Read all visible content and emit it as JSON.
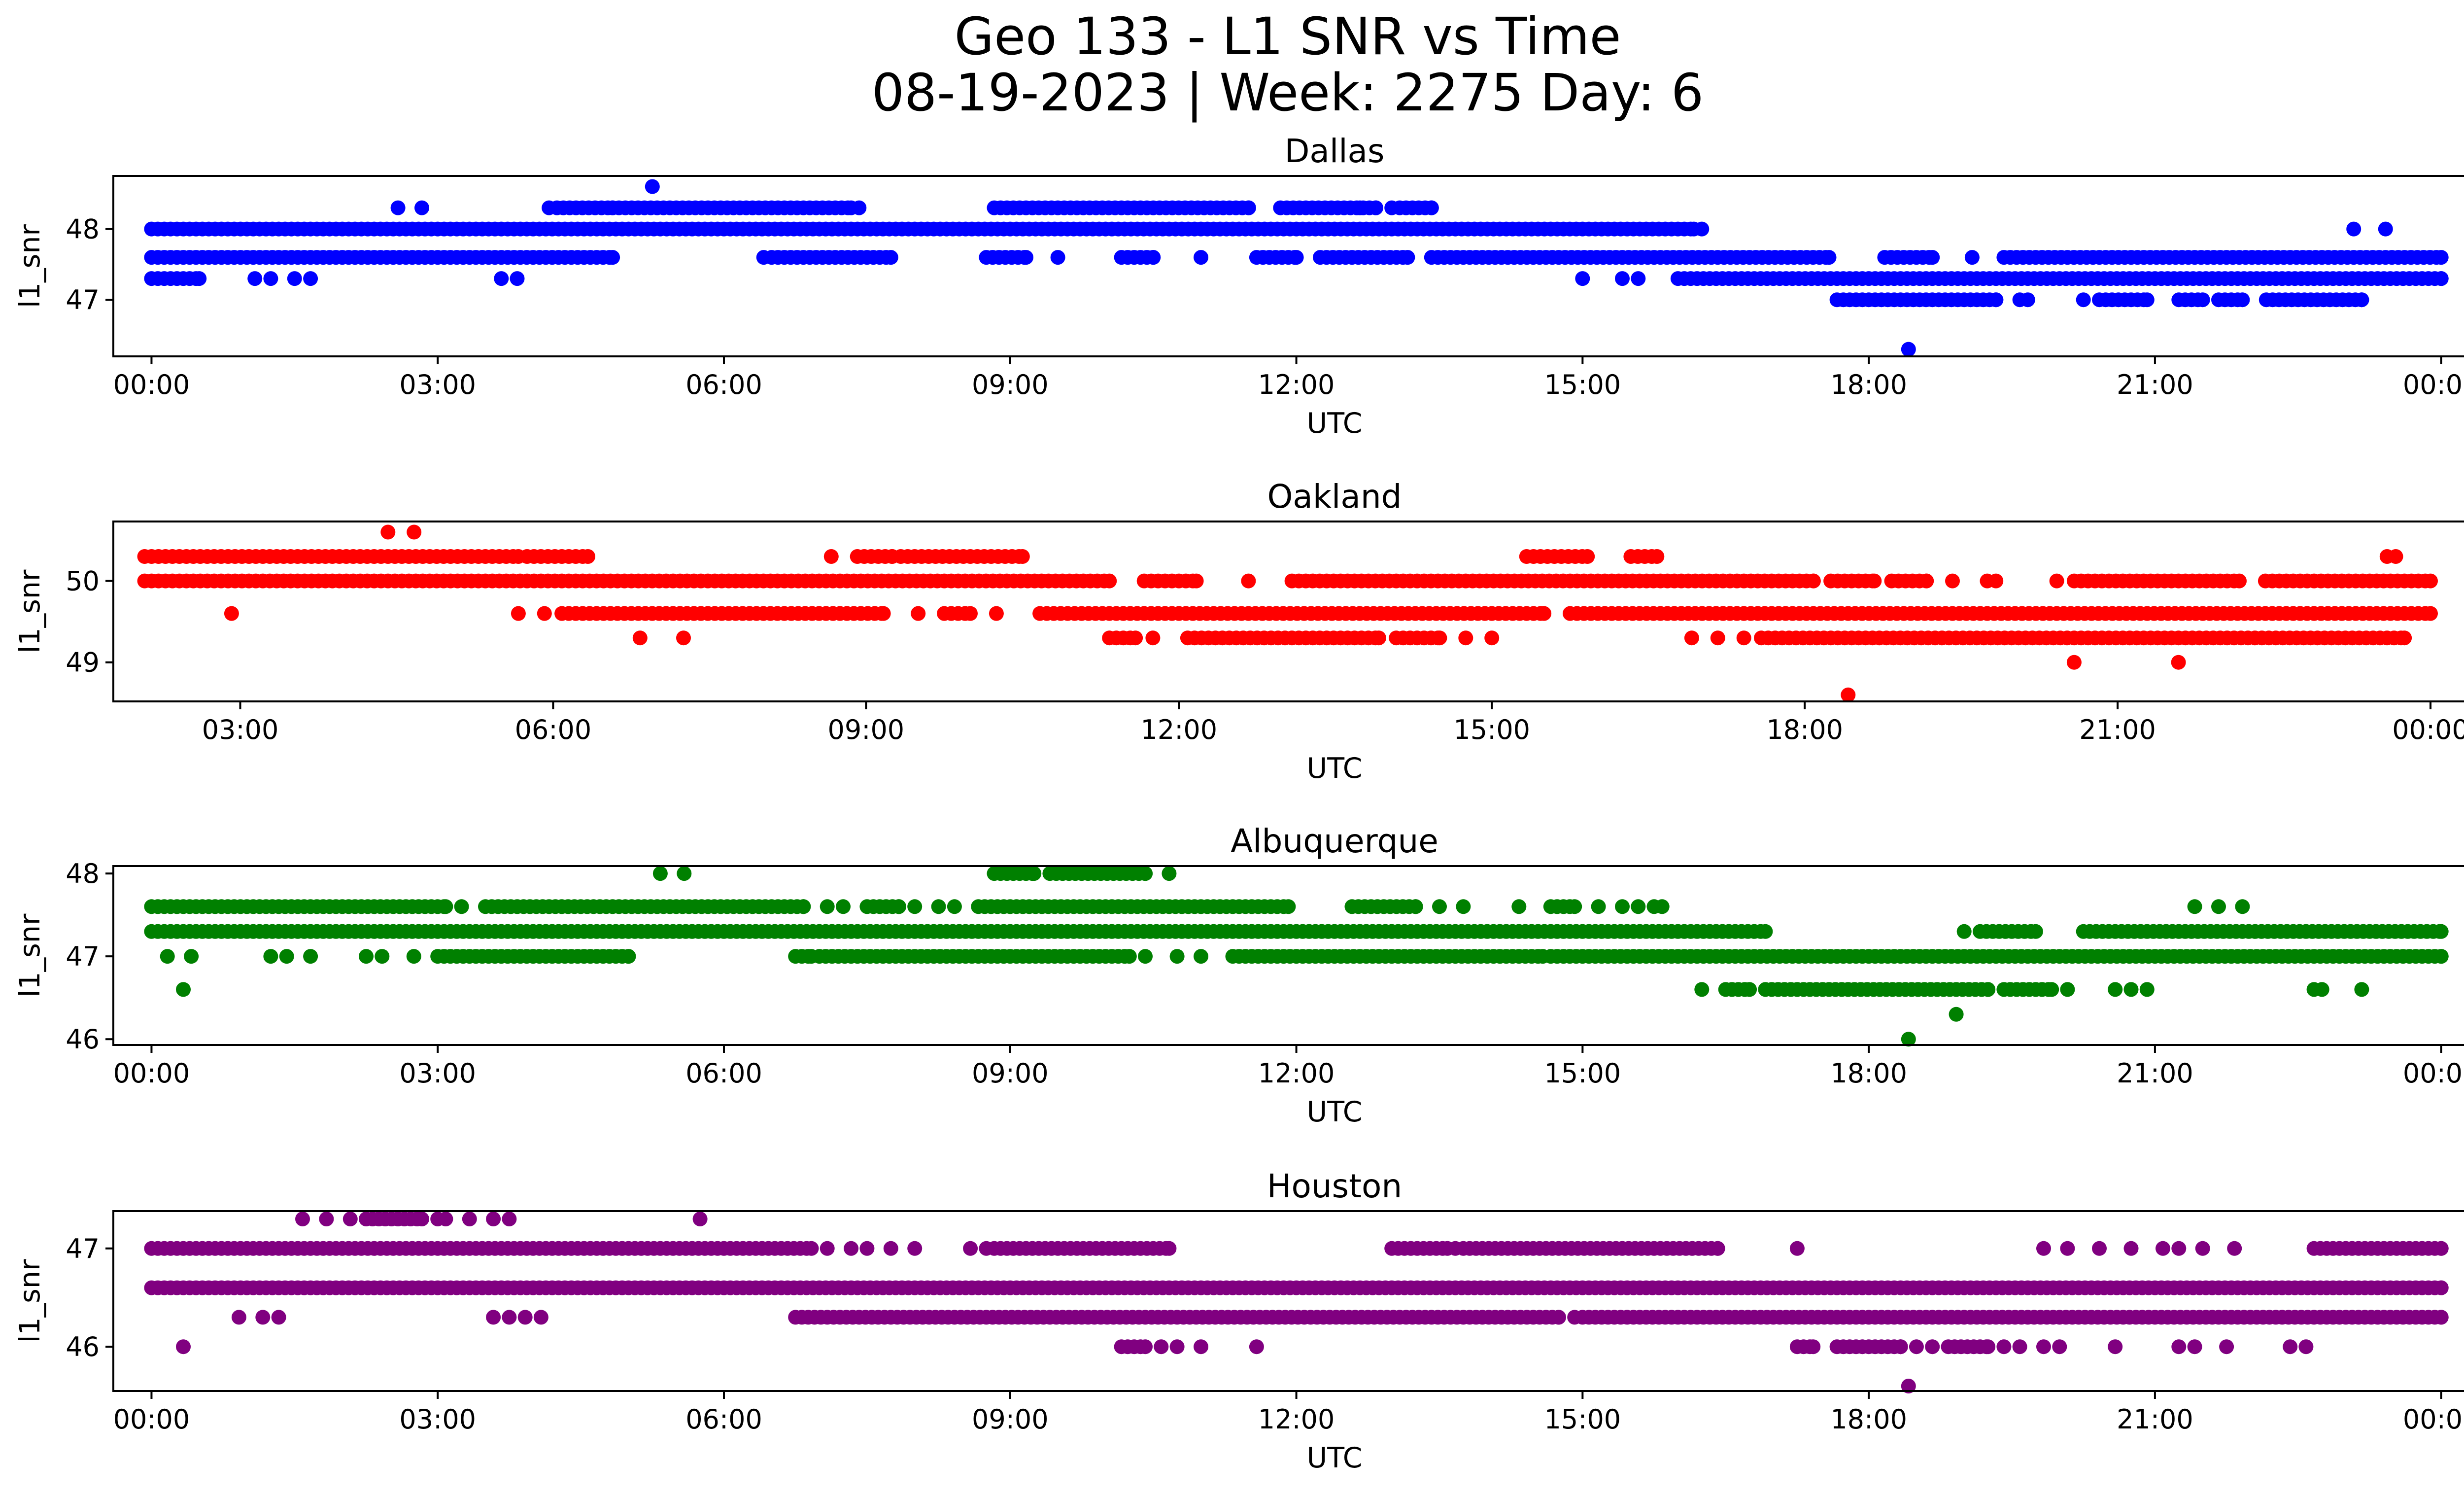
{
  "figure": {
    "title_line1": "Geo 133 - L1 SNR vs Time",
    "title_line2": "08-19-2023 | Week: 2275 Day: 6"
  },
  "chart_data": [
    {
      "type": "scatter",
      "title": "Dallas",
      "xlabel": "UTC",
      "ylabel": "l1_snr",
      "color": "#0000ff",
      "xlim": [
        "2023-08-19T23:36",
        "2023-08-21T01:12"
      ],
      "ylim": [
        46.2,
        48.75
      ],
      "x_ticks": [
        "00:00",
        "03:00",
        "06:00",
        "09:00",
        "12:00",
        "15:00",
        "18:00",
        "21:00",
        "00:00"
      ],
      "x_tick_values": [
        "2023-08-20T00:00",
        "2023-08-20T03:00",
        "2023-08-20T06:00",
        "2023-08-20T09:00",
        "2023-08-20T12:00",
        "2023-08-20T15:00",
        "2023-08-20T18:00",
        "2023-08-20T21:00",
        "2023-08-21T00:00"
      ],
      "y_ticks": [
        "47",
        "48"
      ],
      "y_tick_values": [
        47,
        48
      ],
      "series": [
        {
          "values": [
            {
              "y": 48.0,
              "ranges": [
                [
                  "00:00",
                  "16:10"
                ]
              ],
              "points": [
                "16:15",
                "23:05",
                "23:25"
              ]
            },
            {
              "y": 47.6,
              "ranges": [
                [
                  "00:00",
                  "04:50"
                ],
                [
                  "06:30",
                  "07:45"
                ],
                [
                  "08:45",
                  "09:10"
                ],
                [
                  "10:10",
                  "10:30"
                ],
                [
                  "11:35",
                  "12:00"
                ],
                [
                  "12:15",
                  "13:10"
                ],
                [
                  "13:25",
                  "17:35"
                ],
                [
                  "18:10",
                  "18:40"
                ],
                [
                  "19:25",
                  "24:00"
                ]
              ],
              "points": [
                "06:25",
                "09:30",
                "11:00",
                "19:05"
              ]
            },
            {
              "y": 47.3,
              "ranges": [
                [
                  "00:00",
                  "00:30"
                ],
                [
                  "16:00",
                  "24:00"
                ]
              ],
              "points": [
                "01:05",
                "01:15",
                "01:30",
                "01:40",
                "03:40",
                "03:50",
                "15:00",
                "15:25",
                "15:35"
              ]
            },
            {
              "y": 48.3,
              "ranges": [
                [
                  "04:15",
                  "04:50"
                ],
                [
                  "04:50",
                  "07:20"
                ],
                [
                  "08:50",
                  "11:30"
                ],
                [
                  "11:50",
                  "12:50"
                ],
                [
                  "13:05",
                  "13:25"
                ]
              ],
              "points": [
                "02:35",
                "02:50",
                "04:10",
                "07:25",
                "12:40",
                "13:00"
              ]
            },
            {
              "y": 47.0,
              "ranges": [
                [
                  "17:40",
                  "19:20"
                ],
                [
                  "20:25",
                  "20:55"
                ],
                [
                  "21:15",
                  "21:30"
                ],
                [
                  "21:40",
                  "21:55"
                ],
                [
                  "22:10",
                  "23:10"
                ]
              ],
              "points": [
                "19:35",
                "19:40",
                "20:15"
              ]
            },
            {
              "y": 48.6,
              "ranges": [],
              "points": [
                "05:15"
              ]
            },
            {
              "y": 46.3,
              "ranges": [],
              "points": [
                "18:25"
              ]
            }
          ]
        }
      ]
    },
    {
      "type": "scatter",
      "title": "Oakland",
      "xlabel": "UTC",
      "ylabel": "l1_snr",
      "color": "#ff0000",
      "xlim": [
        "2023-08-20T01:47",
        "2023-08-21T01:12"
      ],
      "ylim": [
        48.52,
        50.73
      ],
      "x_ticks": [
        "03:00",
        "06:00",
        "09:00",
        "12:00",
        "15:00",
        "18:00",
        "21:00",
        "00:00"
      ],
      "x_tick_values": [
        "2023-08-20T03:00",
        "2023-08-20T06:00",
        "2023-08-20T09:00",
        "2023-08-20T12:00",
        "2023-08-20T15:00",
        "2023-08-20T18:00",
        "2023-08-20T21:00",
        "2023-08-21T00:00"
      ],
      "y_ticks": [
        "49",
        "50"
      ],
      "y_tick_values": [
        49,
        50
      ],
      "series": [
        {
          "values": [
            {
              "y": 50.3,
              "ranges": [
                [
                  "02:05",
                  "05:40"
                ],
                [
                  "05:45",
                  "06:20"
                ],
                [
                  "08:55",
                  "09:15"
                ],
                [
                  "09:20",
                  "10:30"
                ],
                [
                  "15:20",
                  "15:55"
                ],
                [
                  "16:20",
                  "16:35"
                ]
              ],
              "points": [
                "08:40",
                "23:35",
                "23:40"
              ]
            },
            {
              "y": 50.0,
              "ranges": [
                [
                  "02:05",
                  "11:20"
                ],
                [
                  "11:40",
                  "12:10"
                ],
                [
                  "13:05",
                  "18:05"
                ],
                [
                  "18:15",
                  "18:40"
                ],
                [
                  "18:50",
                  "19:10"
                ],
                [
                  "20:35",
                  "22:10"
                ],
                [
                  "22:25",
                  "24:00"
                ]
              ],
              "points": [
                "12:40",
                "19:25",
                "19:45",
                "19:50",
                "20:25"
              ]
            },
            {
              "y": 49.6,
              "ranges": [
                [
                  "06:05",
                  "09:10"
                ],
                [
                  "09:45",
                  "10:00"
                ],
                [
                  "10:40",
                  "15:30"
                ],
                [
                  "15:45",
                  "24:00"
                ]
              ],
              "points": [
                "02:55",
                "05:40",
                "05:55",
                "09:30",
                "10:15"
              ]
            },
            {
              "y": 49.3,
              "ranges": [
                [
                  "11:20",
                  "11:35"
                ],
                [
                  "12:05",
                  "13:55"
                ],
                [
                  "14:05",
                  "14:30"
                ],
                [
                  "17:35",
                  "23:45"
                ]
              ],
              "points": [
                "06:50",
                "07:15",
                "11:45",
                "14:45",
                "15:00",
                "16:55",
                "17:10",
                "17:25"
              ]
            },
            {
              "y": 50.6,
              "ranges": [],
              "points": [
                "04:25",
                "04:40"
              ]
            },
            {
              "y": 49.0,
              "ranges": [],
              "points": [
                "20:35",
                "21:35"
              ]
            },
            {
              "y": 48.6,
              "ranges": [],
              "points": [
                "18:25"
              ]
            }
          ]
        }
      ]
    },
    {
      "type": "scatter",
      "title": "Albuquerque",
      "xlabel": "UTC",
      "ylabel": "l1_snr",
      "color": "#008000",
      "xlim": [
        "2023-08-19T23:36",
        "2023-08-21T01:12"
      ],
      "ylim": [
        45.93,
        48.09
      ],
      "x_ticks": [
        "00:00",
        "03:00",
        "06:00",
        "09:00",
        "12:00",
        "15:00",
        "18:00",
        "21:00",
        "00:00"
      ],
      "x_tick_values": [
        "2023-08-20T00:00",
        "2023-08-20T03:00",
        "2023-08-20T06:00",
        "2023-08-20T09:00",
        "2023-08-20T12:00",
        "2023-08-20T15:00",
        "2023-08-20T18:00",
        "2023-08-20T21:00",
        "2023-08-21T00:00"
      ],
      "y_ticks": [
        "46",
        "47",
        "48"
      ],
      "y_tick_values": [
        46,
        47,
        48
      ],
      "series": [
        {
          "values": [
            {
              "y": 47.6,
              "ranges": [
                [
                  "00:00",
                  "03:05"
                ],
                [
                  "03:30",
                  "06:50"
                ],
                [
                  "07:30",
                  "07:50"
                ],
                [
                  "08:40",
                  "11:55"
                ],
                [
                  "12:35",
                  "13:15"
                ],
                [
                  "14:40",
                  "14:55"
                ]
              ],
              "points": [
                "03:15",
                "07:05",
                "07:15",
                "08:00",
                "08:15",
                "08:25",
                "13:30",
                "13:45",
                "14:20",
                "15:10",
                "15:25",
                "15:35",
                "15:45",
                "15:50",
                "21:25",
                "21:40",
                "21:55"
              ]
            },
            {
              "y": 47.3,
              "ranges": [
                [
                  "00:00",
                  "16:55"
                ],
                [
                  "19:10",
                  "19:45"
                ],
                [
                  "20:15",
                  "24:00"
                ]
              ],
              "points": [
                "19:00"
              ]
            },
            {
              "y": 47.0,
              "ranges": [
                [
                  "03:00",
                  "05:00"
                ],
                [
                  "06:45",
                  "06:55"
                ],
                [
                  "07:00",
                  "10:15"
                ],
                [
                  "11:20",
                  "14:35"
                ],
                [
                  "14:40",
                  "24:00"
                ]
              ],
              "points": [
                "00:10",
                "00:25",
                "01:15",
                "01:25",
                "01:40",
                "02:15",
                "02:25",
                "02:45",
                "10:25",
                "10:45",
                "11:00"
              ]
            },
            {
              "y": 46.6,
              "ranges": [
                [
                  "16:30",
                  "16:45"
                ],
                [
                  "16:55",
                  "19:15"
                ],
                [
                  "19:25",
                  "19:55"
                ]
              ],
              "points": [
                "16:15",
                "20:05",
                "20:35",
                "20:45",
                "20:55",
                "22:40",
                "22:45",
                "23:10"
              ]
            },
            {
              "y": 48.0,
              "ranges": [
                [
                  "08:50",
                  "09:15"
                ],
                [
                  "09:25",
                  "10:25"
                ]
              ],
              "points": [
                "05:20",
                "05:35",
                "10:40"
              ]
            },
            {
              "y": 46.3,
              "ranges": [],
              "points": [
                "18:55"
              ]
            },
            {
              "y": 46.0,
              "ranges": [],
              "points": [
                "18:25"
              ]
            },
            {
              "y": 46.6,
              "ranges": [],
              "points": [
                "00:20"
              ]
            }
          ]
        }
      ]
    },
    {
      "type": "scatter",
      "title": "Houston",
      "xlabel": "UTC",
      "ylabel": "l1_snr",
      "color": "#800080",
      "xlim": [
        "2023-08-19T23:36",
        "2023-08-21T01:12"
      ],
      "ylim": [
        45.55,
        47.38
      ],
      "x_ticks": [
        "00:00",
        "03:00",
        "06:00",
        "09:00",
        "12:00",
        "15:00",
        "18:00",
        "21:00",
        "00:00"
      ],
      "x_tick_values": [
        "2023-08-20T00:00",
        "2023-08-20T03:00",
        "2023-08-20T06:00",
        "2023-08-20T09:00",
        "2023-08-20T12:00",
        "2023-08-20T15:00",
        "2023-08-20T18:00",
        "2023-08-20T21:00",
        "2023-08-21T00:00"
      ],
      "y_ticks": [
        "46",
        "47"
      ],
      "y_tick_values": [
        46,
        47
      ],
      "series": [
        {
          "values": [
            {
              "y": 47.0,
              "ranges": [
                [
                  "00:00",
                  "06:55"
                ],
                [
                  "08:50",
                  "10:40"
                ],
                [
                  "13:00",
                  "13:35"
                ],
                [
                  "13:45",
                  "16:25"
                ],
                [
                  "22:40",
                  "24:00"
                ]
              ],
              "points": [
                "07:05",
                "07:20",
                "07:30",
                "07:45",
                "08:00",
                "08:35",
                "08:45",
                "13:40",
                "17:15",
                "19:50",
                "20:05",
                "20:25",
                "20:45",
                "21:05",
                "21:15",
                "21:30",
                "21:50"
              ]
            },
            {
              "y": 46.6,
              "ranges": [
                [
                  "00:00",
                  "24:00"
                ]
              ],
              "points": []
            },
            {
              "y": 46.3,
              "ranges": [
                [
                  "06:45",
                  "14:45"
                ],
                [
                  "15:00",
                  "24:00"
                ]
              ],
              "points": [
                "00:55",
                "01:10",
                "01:20",
                "03:35",
                "03:45",
                "03:55",
                "04:05",
                "14:55"
              ]
            },
            {
              "y": 46.0,
              "ranges": [
                [
                  "10:10",
                  "10:25"
                ],
                [
                  "17:15",
                  "17:25"
                ],
                [
                  "17:40",
                  "18:20"
                ],
                [
                  "18:50",
                  "19:15"
                ]
              ],
              "points": [
                "00:20",
                "10:35",
                "10:45",
                "11:00",
                "11:35",
                "18:30",
                "18:40",
                "19:25",
                "19:35",
                "19:50",
                "20:00",
                "20:35",
                "21:15",
                "21:25",
                "21:45",
                "22:25",
                "22:35"
              ]
            },
            {
              "y": 47.3,
              "ranges": [
                [
                  "02:15",
                  "02:50"
                ]
              ],
              "points": [
                "01:35",
                "01:50",
                "02:05",
                "03:00",
                "03:05",
                "03:20",
                "03:35",
                "03:45",
                "05:45"
              ]
            },
            {
              "y": 45.6,
              "ranges": [],
              "points": [
                "18:25"
              ]
            }
          ]
        }
      ]
    }
  ]
}
